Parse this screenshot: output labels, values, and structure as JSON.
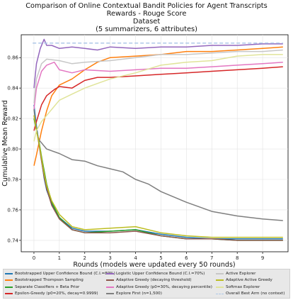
{
  "chart_data": {
    "type": "line",
    "title": "Comparison of Online Contextual Bandit Policies for Agent Transcripts",
    "subtitle_lines": [
      "Rewards - Rouge Score",
      "Dataset",
      "(5 summarizers, 6 attributes)"
    ],
    "xlabel": "Rounds (models were updated every 50 rounds)",
    "ylabel": "Cumulative Mean Reward",
    "xlim": [
      -0.5,
      10.0
    ],
    "ylim": [
      0.7325,
      0.875
    ],
    "x_ticks": [
      "0",
      "1",
      "2",
      "3",
      "4",
      "5",
      "6",
      "7",
      "8",
      "9"
    ],
    "y_ticks": [
      "0.74",
      "0.76",
      "0.78",
      "0.80",
      "0.82",
      "0.84",
      "0.86"
    ],
    "grid": true,
    "legend_position": "bottom",
    "series": [
      {
        "name": "Bootstrapped Upper Confidence Bound (C.I.=80%)",
        "color": "#1f77b4",
        "dashed": false,
        "points": [
          [
            0,
            0.829
          ],
          [
            0.1,
            0.815
          ],
          [
            0.2,
            0.804
          ],
          [
            0.3,
            0.793
          ],
          [
            0.4,
            0.781
          ],
          [
            0.5,
            0.773
          ],
          [
            0.7,
            0.764
          ],
          [
            1.0,
            0.755
          ],
          [
            1.5,
            0.748
          ],
          [
            2.0,
            0.746
          ],
          [
            3.0,
            0.746
          ],
          [
            4.0,
            0.747
          ],
          [
            5.0,
            0.744
          ],
          [
            6.0,
            0.742
          ],
          [
            7.0,
            0.741
          ],
          [
            8.0,
            0.741
          ],
          [
            9.0,
            0.741
          ],
          [
            9.8,
            0.741
          ]
        ]
      },
      {
        "name": "Bootstrapped Thompson Sampling",
        "color": "#ff7f0e",
        "dashed": false,
        "points": [
          [
            0,
            0.789
          ],
          [
            0.1,
            0.796
          ],
          [
            0.3,
            0.812
          ],
          [
            0.5,
            0.825
          ],
          [
            0.7,
            0.835
          ],
          [
            1.0,
            0.842
          ],
          [
            1.5,
            0.846
          ],
          [
            2.0,
            0.852
          ],
          [
            2.5,
            0.857
          ],
          [
            3.0,
            0.86
          ],
          [
            4.0,
            0.861
          ],
          [
            5.0,
            0.862
          ],
          [
            6.0,
            0.864
          ],
          [
            7.0,
            0.864
          ],
          [
            8.0,
            0.865
          ],
          [
            9.0,
            0.866
          ],
          [
            9.8,
            0.867
          ]
        ]
      },
      {
        "name": "Separate Classifiers + Beta Prior",
        "color": "#2ca02c",
        "dashed": false,
        "points": [
          [
            0,
            0.82
          ],
          [
            0.1,
            0.812
          ],
          [
            0.2,
            0.805
          ],
          [
            0.3,
            0.795
          ],
          [
            0.4,
            0.786
          ],
          [
            0.5,
            0.777
          ],
          [
            0.7,
            0.765
          ],
          [
            1.0,
            0.755
          ],
          [
            1.5,
            0.747
          ],
          [
            2.0,
            0.745
          ],
          [
            3.0,
            0.746
          ],
          [
            4.0,
            0.747
          ],
          [
            5.0,
            0.743
          ],
          [
            6.0,
            0.741
          ],
          [
            7.0,
            0.741
          ],
          [
            8.0,
            0.74
          ],
          [
            9.0,
            0.74
          ],
          [
            9.8,
            0.74
          ]
        ]
      },
      {
        "name": "Epsilon-Greedy (p0=20%, decay=0.9999)",
        "color": "#d62728",
        "dashed": false,
        "points": [
          [
            0,
            0.812
          ],
          [
            0.1,
            0.818
          ],
          [
            0.3,
            0.829
          ],
          [
            0.5,
            0.835
          ],
          [
            0.8,
            0.839
          ],
          [
            1.0,
            0.841
          ],
          [
            1.5,
            0.84
          ],
          [
            2.0,
            0.845
          ],
          [
            2.5,
            0.847
          ],
          [
            3.0,
            0.847
          ],
          [
            4.0,
            0.848
          ],
          [
            5.0,
            0.849
          ],
          [
            6.0,
            0.85
          ],
          [
            7.0,
            0.851
          ],
          [
            8.0,
            0.852
          ],
          [
            9.0,
            0.853
          ],
          [
            9.8,
            0.854
          ]
        ]
      },
      {
        "name": "Logistic Upper Confidence Bound (C.I.=70%)",
        "color": "#9467bd",
        "dashed": false,
        "points": [
          [
            0,
            0.84
          ],
          [
            0.1,
            0.856
          ],
          [
            0.25,
            0.866
          ],
          [
            0.4,
            0.872
          ],
          [
            0.5,
            0.868
          ],
          [
            0.7,
            0.868
          ],
          [
            1.0,
            0.866
          ],
          [
            1.5,
            0.867
          ],
          [
            2.0,
            0.866
          ],
          [
            2.5,
            0.865
          ],
          [
            3.0,
            0.867
          ],
          [
            4.0,
            0.866
          ],
          [
            5.0,
            0.867
          ],
          [
            6.0,
            0.867
          ],
          [
            7.0,
            0.868
          ],
          [
            8.0,
            0.868
          ],
          [
            9.0,
            0.869
          ],
          [
            9.8,
            0.869
          ]
        ]
      },
      {
        "name": "Adaptive Greedy (decaying threshold)",
        "color": "#8c564b",
        "dashed": false,
        "points": [
          [
            0,
            0.822
          ],
          [
            0.1,
            0.813
          ],
          [
            0.2,
            0.803
          ],
          [
            0.3,
            0.792
          ],
          [
            0.4,
            0.782
          ],
          [
            0.5,
            0.774
          ],
          [
            0.7,
            0.763
          ],
          [
            1.0,
            0.754
          ],
          [
            1.5,
            0.747
          ],
          [
            2.0,
            0.745
          ],
          [
            3.0,
            0.745
          ],
          [
            4.0,
            0.746
          ],
          [
            5.0,
            0.743
          ],
          [
            6.0,
            0.741
          ],
          [
            7.0,
            0.741
          ],
          [
            8.0,
            0.74
          ],
          [
            9.0,
            0.74
          ],
          [
            9.8,
            0.74
          ]
        ]
      },
      {
        "name": "Adaptive Greedy (p0=30%, decaying percentile)",
        "color": "#e377c2",
        "dashed": false,
        "points": [
          [
            0,
            0.826
          ],
          [
            0.1,
            0.84
          ],
          [
            0.3,
            0.851
          ],
          [
            0.5,
            0.855
          ],
          [
            0.8,
            0.857
          ],
          [
            1.0,
            0.852
          ],
          [
            1.5,
            0.85
          ],
          [
            2.0,
            0.852
          ],
          [
            3.0,
            0.851
          ],
          [
            4.0,
            0.852
          ],
          [
            5.0,
            0.853
          ],
          [
            6.0,
            0.853
          ],
          [
            7.0,
            0.854
          ],
          [
            8.0,
            0.855
          ],
          [
            9.0,
            0.856
          ],
          [
            9.8,
            0.857
          ]
        ]
      },
      {
        "name": "Explore First (n=1,500)",
        "color": "#7f7f7f",
        "dashed": false,
        "points": [
          [
            0,
            0.826
          ],
          [
            0.1,
            0.812
          ],
          [
            0.2,
            0.806
          ],
          [
            0.3,
            0.804
          ],
          [
            0.5,
            0.8
          ],
          [
            1.0,
            0.797
          ],
          [
            1.5,
            0.793
          ],
          [
            2.0,
            0.792
          ],
          [
            2.5,
            0.789
          ],
          [
            3.0,
            0.787
          ],
          [
            3.5,
            0.785
          ],
          [
            4.0,
            0.78
          ],
          [
            4.5,
            0.777
          ],
          [
            5.0,
            0.772
          ],
          [
            6.0,
            0.765
          ],
          [
            7.0,
            0.759
          ],
          [
            8.0,
            0.756
          ],
          [
            9.0,
            0.754
          ],
          [
            9.8,
            0.753
          ]
        ]
      },
      {
        "name": "Active Explorer",
        "color": "#c7c7c7",
        "dashed": false,
        "points": [
          [
            0,
            0.83
          ],
          [
            0.1,
            0.846
          ],
          [
            0.3,
            0.856
          ],
          [
            0.5,
            0.859
          ],
          [
            1.0,
            0.858
          ],
          [
            1.5,
            0.856
          ],
          [
            2.0,
            0.857
          ],
          [
            3.0,
            0.858
          ],
          [
            4.0,
            0.86
          ],
          [
            5.0,
            0.862
          ],
          [
            6.0,
            0.862
          ],
          [
            7.0,
            0.863
          ],
          [
            8.0,
            0.864
          ],
          [
            9.0,
            0.864
          ],
          [
            9.8,
            0.865
          ]
        ]
      },
      {
        "name": "Adaptive Active Greedy",
        "color": "#bcbd22",
        "dashed": false,
        "points": [
          [
            0,
            0.822
          ],
          [
            0.1,
            0.812
          ],
          [
            0.2,
            0.804
          ],
          [
            0.3,
            0.794
          ],
          [
            0.4,
            0.784
          ],
          [
            0.5,
            0.776
          ],
          [
            0.7,
            0.766
          ],
          [
            1.0,
            0.757
          ],
          [
            1.5,
            0.749
          ],
          [
            2.0,
            0.747
          ],
          [
            3.0,
            0.748
          ],
          [
            4.0,
            0.749
          ],
          [
            5.0,
            0.745
          ],
          [
            6.0,
            0.743
          ],
          [
            7.0,
            0.742
          ],
          [
            8.0,
            0.742
          ],
          [
            9.0,
            0.742
          ],
          [
            9.8,
            0.742
          ]
        ]
      },
      {
        "name": "Softmax Explorer",
        "color": "#e0e49a",
        "dashed": false,
        "points": [
          [
            0,
            0.805
          ],
          [
            0.1,
            0.812
          ],
          [
            0.3,
            0.818
          ],
          [
            0.5,
            0.822
          ],
          [
            0.8,
            0.828
          ],
          [
            1.0,
            0.832
          ],
          [
            1.5,
            0.836
          ],
          [
            2.0,
            0.84
          ],
          [
            2.5,
            0.843
          ],
          [
            3.0,
            0.846
          ],
          [
            4.0,
            0.85
          ],
          [
            5.0,
            0.855
          ],
          [
            6.0,
            0.857
          ],
          [
            7.0,
            0.858
          ],
          [
            8.0,
            0.861
          ],
          [
            9.0,
            0.862
          ],
          [
            9.8,
            0.862
          ]
        ]
      },
      {
        "name": "Overall Best Arm (no context)",
        "color": "#aec7e8",
        "dashed": true,
        "points": [
          [
            -0.05,
            0.8695
          ],
          [
            9.8,
            0.8695
          ]
        ]
      }
    ]
  }
}
